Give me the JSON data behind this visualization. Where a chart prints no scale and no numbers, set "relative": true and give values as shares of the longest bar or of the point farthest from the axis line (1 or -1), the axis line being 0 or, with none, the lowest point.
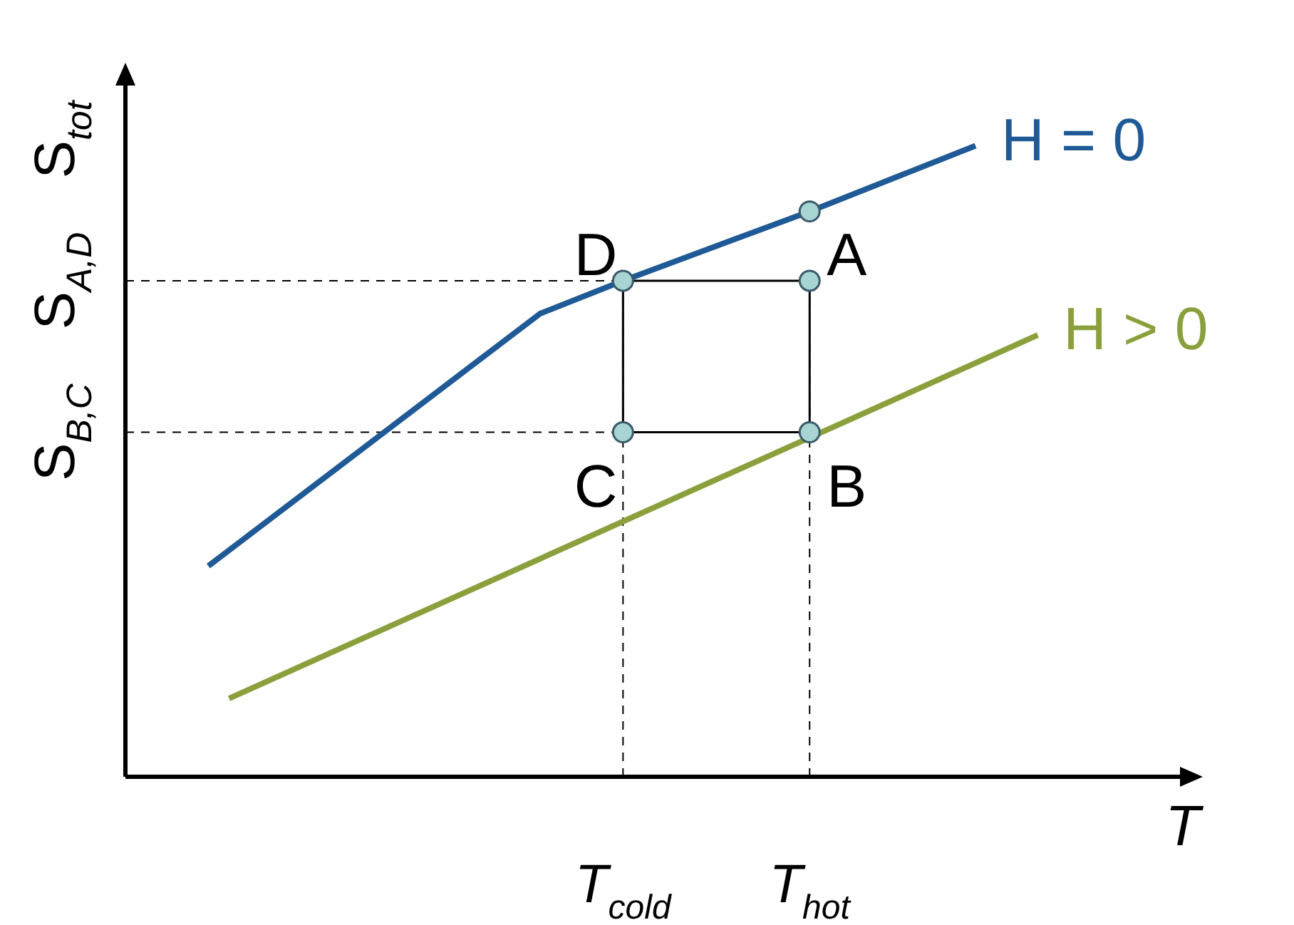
{
  "chart_data": {
    "type": "line",
    "relative": true,
    "xlabel": "T",
    "ylabel": "S$_{tot}$",
    "legend": false,
    "tick_labels": "x",
    "categories": [
      null,
      null,
      null,
      null,
      null,
      null,
      null,
      null,
      null,
      null,
      null,
      null,
      null,
      null,
      null,
      null,
      null,
      null,
      null,
      null,
      null,
      null,
      null,
      null,
      "T$_{cold}$",
      null,
      null,
      null,
      null,
      null,
      null,
      null,
      null,
      "T$_{hot}$",
      null,
      null,
      null,
      null,
      null,
      null,
      null,
      null,
      null,
      null,
      null,
      null,
      null,
      null,
      null,
      null,
      null,
      null
    ],
    "series": [
      {
        "name": "H = 0",
        "color": "#1f5a96",
        "values": [
          null,
          null,
          null,
          null,
          0.334,
          null,
          null,
          null,
          null,
          null,
          null,
          null,
          null,
          null,
          null,
          null,
          null,
          null,
          null,
          null,
          0.734,
          null,
          null,
          null,
          0.786,
          null,
          null,
          null,
          null,
          null,
          null,
          null,
          null,
          0.896,
          null,
          null,
          null,
          null,
          null,
          null,
          null,
          1,
          null,
          null,
          null,
          null,
          null,
          null,
          null,
          null,
          null,
          null
        ]
      },
      {
        "name": "H > 0",
        "color": "#8aa03c",
        "values": [
          null,
          null,
          null,
          null,
          null,
          0.124,
          null,
          null,
          null,
          null,
          null,
          null,
          null,
          null,
          null,
          null,
          null,
          null,
          null,
          null,
          null,
          null,
          null,
          null,
          null,
          null,
          null,
          null,
          null,
          null,
          null,
          null,
          null,
          null,
          null,
          null,
          null,
          null,
          null,
          null,
          null,
          null,
          null,
          null,
          0.7,
          null,
          null,
          null,
          null,
          null,
          null,
          null
        ]
      },
      {
        "type": "scatter",
        "color": "#a8d4d4",
        "marker": "circle",
        "values": [
          null,
          null,
          null,
          null,
          null,
          null,
          null,
          null,
          null,
          null,
          null,
          null,
          null,
          null,
          null,
          null,
          null,
          null,
          null,
          null,
          null,
          null,
          null,
          null,
          0.786,
          null,
          null,
          null,
          null,
          null,
          null,
          null,
          null,
          0.786,
          null,
          null,
          null,
          null,
          null,
          null,
          null,
          null,
          null,
          null,
          null,
          null,
          null,
          null,
          null,
          null,
          null,
          null
        ]
      },
      {
        "type": "scatter",
        "color": "#a8d4d4",
        "marker": "circle",
        "values": [
          null,
          null,
          null,
          null,
          null,
          null,
          null,
          null,
          null,
          null,
          null,
          null,
          null,
          null,
          null,
          null,
          null,
          null,
          null,
          null,
          null,
          null,
          null,
          null,
          0.546,
          null,
          null,
          null,
          null,
          null,
          null,
          null,
          null,
          0.546,
          null,
          null,
          null,
          null,
          null,
          null,
          null,
          null,
          null,
          null,
          null,
          null,
          null,
          null,
          null,
          null,
          null,
          null
        ]
      },
      {
        "type": "scatter",
        "color": "#a8d4d4",
        "marker": "circle",
        "values": [
          null,
          null,
          null,
          null,
          null,
          null,
          null,
          null,
          null,
          null,
          null,
          null,
          null,
          null,
          null,
          null,
          null,
          null,
          null,
          null,
          null,
          null,
          null,
          null,
          null,
          null,
          null,
          null,
          null,
          null,
          null,
          null,
          null,
          0.896,
          null,
          null,
          null,
          null,
          null,
          null,
          null,
          null,
          null,
          null,
          null,
          null,
          null,
          null,
          null,
          null,
          null,
          null
        ]
      }
    ],
    "ref_lines": [
      {
        "axis": "x",
        "value": "T$_{cold}$",
        "line_style": "dashed"
      },
      {
        "axis": "x",
        "value": "T$_{hot}$",
        "line_style": "dashed"
      },
      {
        "axis": "y",
        "value": 0.786,
        "label": "S$_{A,D}$",
        "line_style": "dashed"
      },
      {
        "axis": "y",
        "value": 0.546,
        "label": "S$_{B,C}$",
        "line_style": "dashed"
      }
    ],
    "annotations": [
      {
        "text": "D",
        "x": "T$_{cold}$",
        "y": 0.786
      },
      {
        "text": "A",
        "x": "T$_{hot}$",
        "y": 0.786
      },
      {
        "text": "B",
        "x": "T$_{hot}$",
        "y": 0.546
      },
      {
        "text": "C",
        "x": "T$_{cold}$",
        "y": 0.546
      }
    ]
  }
}
